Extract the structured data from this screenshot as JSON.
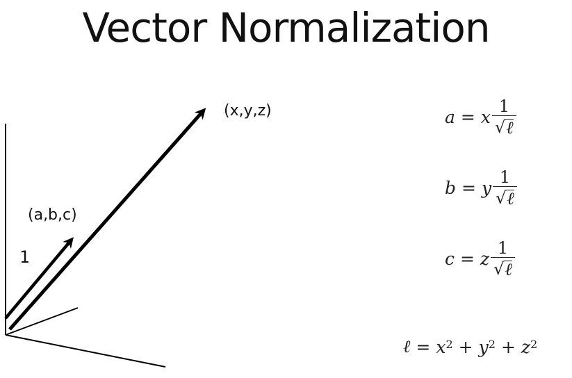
{
  "title": "Vector Normalization",
  "labels": {
    "big_vector": "(x,y,z)",
    "unit_vector": "(a,b,c)",
    "unit_length": "1"
  },
  "equations": [
    {
      "lhs": "a",
      "equals": "=",
      "var": "x",
      "num": "1",
      "radical": "√",
      "radicand": "ℓ"
    },
    {
      "lhs": "b",
      "equals": "=",
      "var": "y",
      "num": "1",
      "radical": "√",
      "radicand": "ℓ"
    },
    {
      "lhs": "c",
      "equals": "=",
      "var": "z",
      "num": "1",
      "radical": "√",
      "radicand": "ℓ"
    }
  ],
  "length_equation": {
    "lhs": "ℓ",
    "equals": "=",
    "t1": "x",
    "e1": "2",
    "plus1": "+",
    "t2": "y",
    "e2": "2",
    "plus2": "+",
    "t3": "z",
    "e3": "2"
  }
}
